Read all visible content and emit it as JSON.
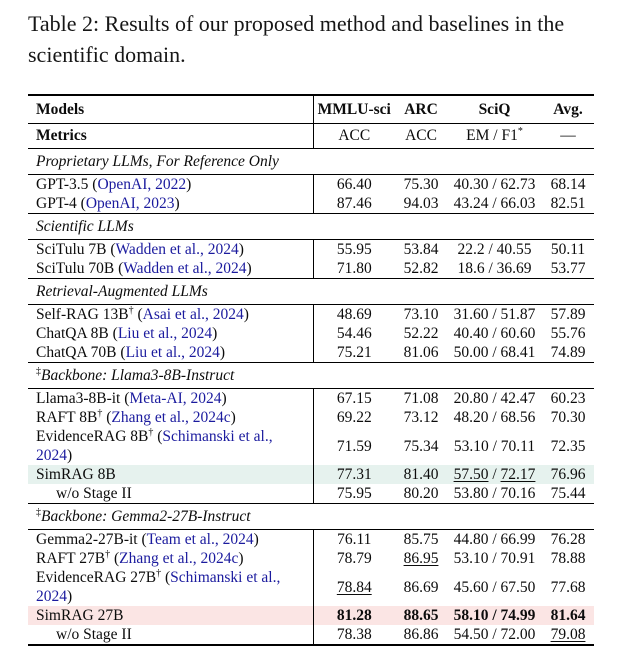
{
  "caption": "Table 2: Results of our proposed method and baselines in the scientific domain.",
  "colors": {
    "citation": "#1b1b9e",
    "highlight_green": "#e6f2ee",
    "highlight_pink": "#fbe5e4",
    "rule": "#000000"
  },
  "table": {
    "header": {
      "models": "Models",
      "cols": [
        "MMLU-sci",
        "ARC",
        "SciQ",
        "Avg."
      ]
    },
    "metrics": {
      "label": "Metrics",
      "cols": [
        [
          {
            "t": "ACC"
          }
        ],
        [
          {
            "t": "ACC"
          }
        ],
        [
          {
            "t": "EM / F1"
          },
          {
            "t": "*",
            "sup": 1
          }
        ],
        [
          {
            "t": "—"
          }
        ]
      ]
    },
    "sections": [
      {
        "label": {
          "sup": "",
          "text": "Proprietary LLMs, For Reference Only"
        },
        "rows": [
          {
            "model": {
              "name": "GPT-3.5",
              "cite": "OpenAI, 2022"
            },
            "values": [
              [
                {
                  "t": "66.40"
                }
              ],
              [
                {
                  "t": "75.30"
                }
              ],
              [
                {
                  "t": "40.30 / 62.73"
                }
              ],
              [
                {
                  "t": "68.14"
                }
              ]
            ]
          },
          {
            "model": {
              "name": "GPT-4",
              "cite": "OpenAI, 2023"
            },
            "values": [
              [
                {
                  "t": "87.46"
                }
              ],
              [
                {
                  "t": "94.03"
                }
              ],
              [
                {
                  "t": "43.24 / 66.03"
                }
              ],
              [
                {
                  "t": "82.51"
                }
              ]
            ]
          }
        ]
      },
      {
        "label": {
          "sup": "",
          "text": "Scientific LLMs"
        },
        "rows": [
          {
            "model": {
              "name": "SciTulu 7B",
              "cite": "Wadden et al., 2024"
            },
            "values": [
              [
                {
                  "t": "55.95"
                }
              ],
              [
                {
                  "t": "53.84"
                }
              ],
              [
                {
                  "t": "22.2 / 40.55"
                }
              ],
              [
                {
                  "t": "50.11"
                }
              ]
            ]
          },
          {
            "model": {
              "name": "SciTulu 70B",
              "cite": "Wadden et al., 2024"
            },
            "values": [
              [
                {
                  "t": "71.80"
                }
              ],
              [
                {
                  "t": "52.82"
                }
              ],
              [
                {
                  "t": "18.6 / 36.69"
                }
              ],
              [
                {
                  "t": "53.77"
                }
              ]
            ]
          }
        ]
      },
      {
        "label": {
          "sup": "",
          "text": "Retrieval-Augmented LLMs"
        },
        "rows": [
          {
            "model": {
              "name": "Self-RAG 13B",
              "sup": "†",
              "cite": "Asai et al., 2024"
            },
            "values": [
              [
                {
                  "t": "48.69"
                }
              ],
              [
                {
                  "t": "73.10"
                }
              ],
              [
                {
                  "t": "31.60 / 51.87"
                }
              ],
              [
                {
                  "t": "57.89"
                }
              ]
            ]
          },
          {
            "model": {
              "name": "ChatQA 8B",
              "cite": "Liu et al., 2024"
            },
            "values": [
              [
                {
                  "t": "54.46"
                }
              ],
              [
                {
                  "t": "52.22"
                }
              ],
              [
                {
                  "t": "40.40 / 60.60"
                }
              ],
              [
                {
                  "t": "55.76"
                }
              ]
            ]
          },
          {
            "model": {
              "name": "ChatQA 70B",
              "cite": "Liu et al., 2024"
            },
            "values": [
              [
                {
                  "t": "75.21"
                }
              ],
              [
                {
                  "t": "81.06"
                }
              ],
              [
                {
                  "t": "50.00 / 68.41"
                }
              ],
              [
                {
                  "t": "74.89"
                }
              ]
            ]
          }
        ]
      },
      {
        "label": {
          "sup": "‡",
          "text": "Backbone: Llama3-8B-Instruct"
        },
        "rows": [
          {
            "model": {
              "name": "Llama3-8B-it",
              "cite": "Meta-AI, 2024"
            },
            "values": [
              [
                {
                  "t": "67.15"
                }
              ],
              [
                {
                  "t": "71.08"
                }
              ],
              [
                {
                  "t": "20.80 / 42.47"
                }
              ],
              [
                {
                  "t": "60.23"
                }
              ]
            ]
          },
          {
            "model": {
              "name": "RAFT 8B",
              "sup": "†",
              "cite": "Zhang et al., 2024c"
            },
            "values": [
              [
                {
                  "t": "69.22"
                }
              ],
              [
                {
                  "t": "73.12"
                }
              ],
              [
                {
                  "t": "48.20 / 68.56"
                }
              ],
              [
                {
                  "t": "70.30"
                }
              ]
            ]
          },
          {
            "model": {
              "name": "EvidenceRAG 8B",
              "sup": "†",
              "cite": "Schimanski et al., 2024"
            },
            "values": [
              [
                {
                  "t": "71.59"
                }
              ],
              [
                {
                  "t": "75.34"
                }
              ],
              [
                {
                  "t": "53.10 / 70.11"
                }
              ],
              [
                {
                  "t": "72.35"
                }
              ]
            ]
          },
          {
            "model": {
              "name": "SimRAG 8B"
            },
            "highlight": "green",
            "values": [
              [
                {
                  "t": "77.31"
                }
              ],
              [
                {
                  "t": "81.40"
                }
              ],
              [
                {
                  "t": "57.50",
                  "u": 1
                },
                {
                  "t": " / "
                },
                {
                  "t": "72.17",
                  "u": 1
                }
              ],
              [
                {
                  "t": "76.96"
                }
              ]
            ]
          },
          {
            "model": {
              "name": "w/o Stage II",
              "indent": true
            },
            "values": [
              [
                {
                  "t": "75.95"
                }
              ],
              [
                {
                  "t": "80.20"
                }
              ],
              [
                {
                  "t": "53.80 / 70.16"
                }
              ],
              [
                {
                  "t": "75.44"
                }
              ]
            ]
          }
        ]
      },
      {
        "label": {
          "sup": "‡",
          "text": "Backbone: Gemma2-27B-Instruct"
        },
        "rows": [
          {
            "model": {
              "name": "Gemma2-27B-it",
              "cite": "Team et al., 2024"
            },
            "values": [
              [
                {
                  "t": "76.11"
                }
              ],
              [
                {
                  "t": "85.75"
                }
              ],
              [
                {
                  "t": "44.80 / 66.99"
                }
              ],
              [
                {
                  "t": "76.28"
                }
              ]
            ]
          },
          {
            "model": {
              "name": "RAFT 27B",
              "sup": "†",
              "cite": "Zhang et al., 2024c"
            },
            "values": [
              [
                {
                  "t": "78.79"
                }
              ],
              [
                {
                  "t": "86.95",
                  "u": 1
                }
              ],
              [
                {
                  "t": "53.10 / 70.91"
                }
              ],
              [
                {
                  "t": "78.88"
                }
              ]
            ]
          },
          {
            "model": {
              "name": "EvidenceRAG 27B",
              "sup": "†",
              "cite": "Schimanski et al., 2024"
            },
            "values": [
              [
                {
                  "t": "78.84",
                  "u": 1
                }
              ],
              [
                {
                  "t": "86.69"
                }
              ],
              [
                {
                  "t": "45.60 / 67.50"
                }
              ],
              [
                {
                  "t": "77.68"
                }
              ]
            ]
          },
          {
            "model": {
              "name": "SimRAG 27B"
            },
            "highlight": "pink",
            "values": [
              [
                {
                  "t": "81.28",
                  "b": 1
                }
              ],
              [
                {
                  "t": "88.65",
                  "b": 1
                }
              ],
              [
                {
                  "t": "58.10 / 74.99",
                  "b": 1
                }
              ],
              [
                {
                  "t": "81.64",
                  "b": 1
                }
              ]
            ]
          },
          {
            "model": {
              "name": "w/o Stage II",
              "indent": true
            },
            "values": [
              [
                {
                  "t": "78.38"
                }
              ],
              [
                {
                  "t": "86.86"
                }
              ],
              [
                {
                  "t": "54.50 / 72.00"
                }
              ],
              [
                {
                  "t": "79.08",
                  "u": 1
                }
              ]
            ]
          }
        ]
      }
    ]
  }
}
